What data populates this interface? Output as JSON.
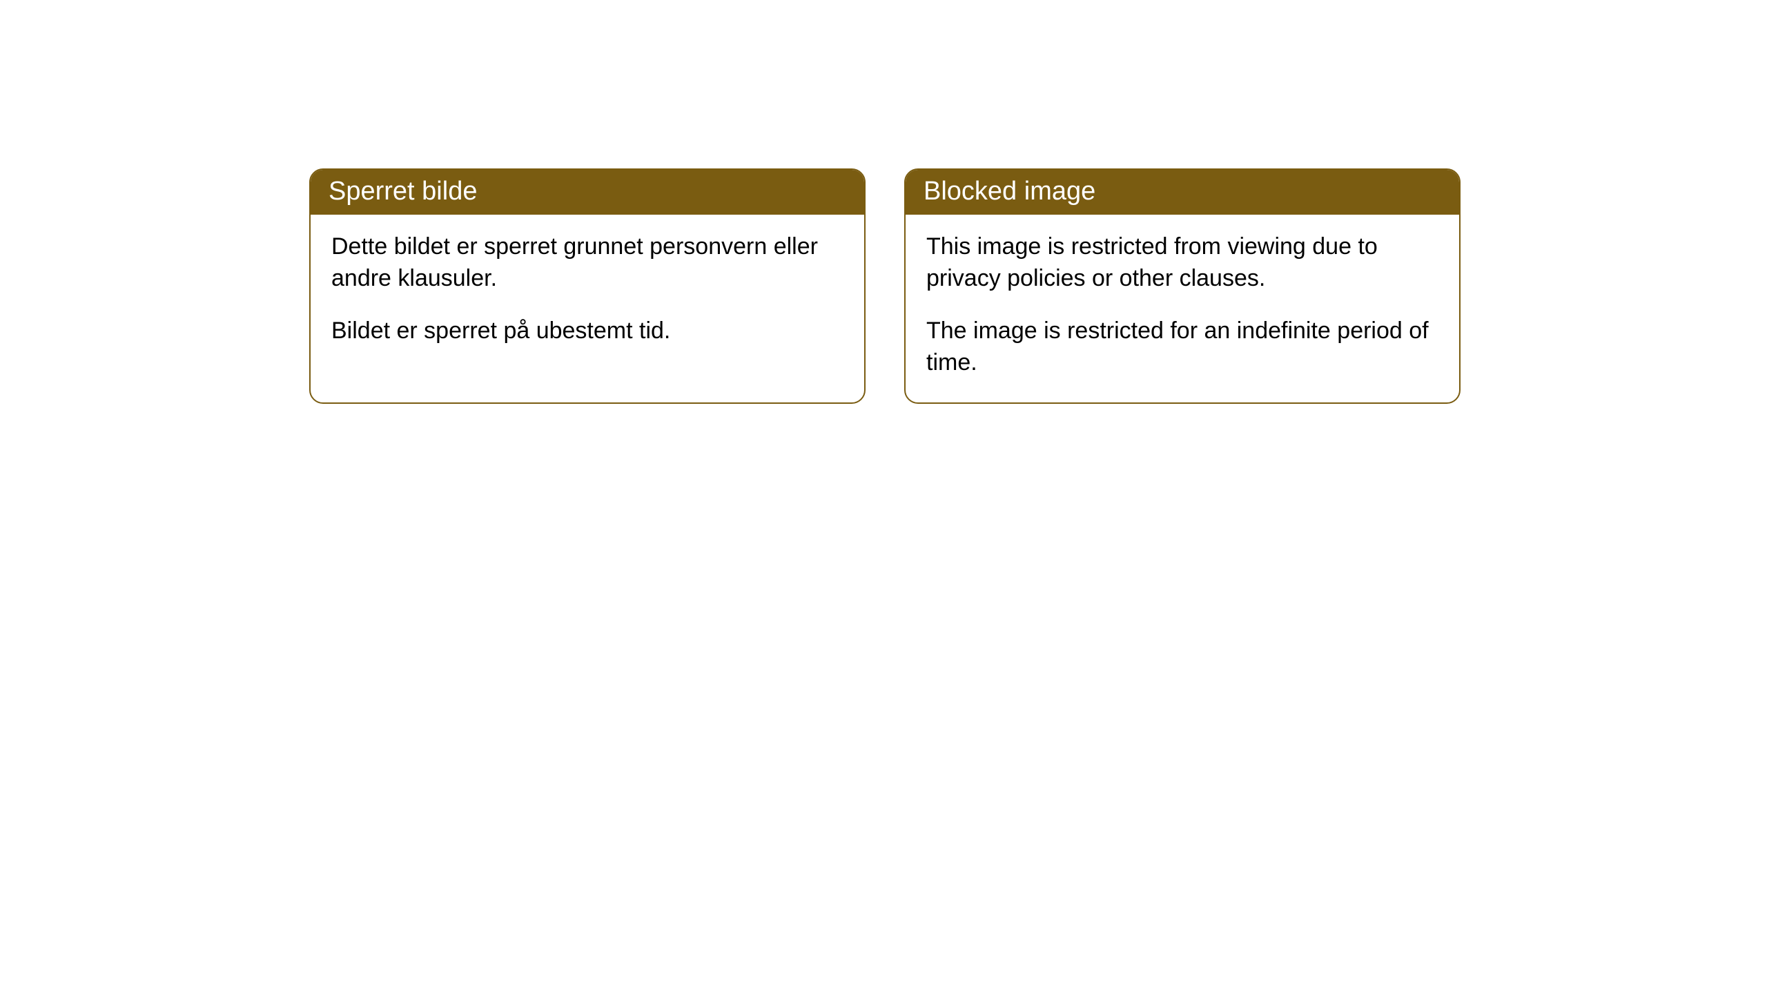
{
  "cards": [
    {
      "title": "Sperret bilde",
      "paragraph1": "Dette bildet er sperret grunnet personvern eller andre klausuler.",
      "paragraph2": "Bildet er sperret på ubestemt tid."
    },
    {
      "title": "Blocked image",
      "paragraph1": "This image is restricted from viewing due to privacy policies or other clauses.",
      "paragraph2": "The image is restricted for an indefinite period of time."
    }
  ],
  "styling": {
    "header_background_color": "#7a5c11",
    "header_text_color": "#ffffff",
    "body_text_color": "#000000",
    "border_color": "#7a5c11",
    "card_background_color": "#ffffff",
    "page_background_color": "#ffffff",
    "border_radius": 20,
    "header_fontsize": 38,
    "body_fontsize": 34
  }
}
